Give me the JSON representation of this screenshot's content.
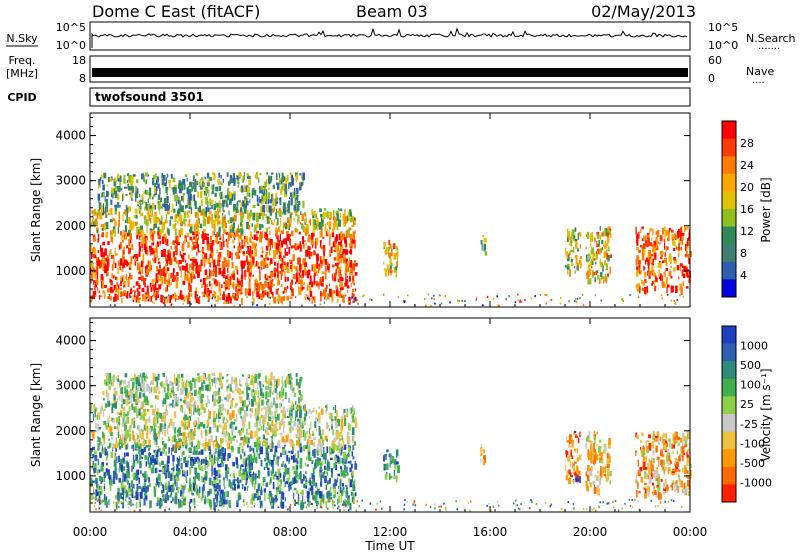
{
  "header": {
    "title": "Dome C East (fitACF)",
    "beam": "Beam 03",
    "date": "02/May/2013"
  },
  "nsky_panel": {
    "left_label": "N.Sky",
    "right_label": "N.Search",
    "right_dots": "·······",
    "left_ticks": [
      "10^5",
      "10^0"
    ],
    "right_ticks": [
      "10^5",
      "10^0"
    ]
  },
  "freq_panel": {
    "left_label_top": "Freq.",
    "left_label_bottom": "[MHz]",
    "left_ticks": [
      "18",
      "8"
    ],
    "right_label": "Nave",
    "right_dots": "····",
    "right_ticks": [
      "60",
      "0"
    ]
  },
  "cpid_panel": {
    "label": "CPID",
    "program": "twofsound 3501"
  },
  "x_axis": {
    "label": "Time UT",
    "ticks": [
      "00:00",
      "04:00",
      "08:00",
      "12:00",
      "16:00",
      "20:00",
      "00:00"
    ],
    "range_hours": [
      0,
      24
    ]
  },
  "chart_data": [
    {
      "type": "heatmap",
      "name": "power",
      "ylabel": "Slant Range [km]",
      "ylim": [
        200,
        4500
      ],
      "yticks": [
        1000,
        2000,
        3000,
        4000
      ],
      "colorbar": {
        "label": "Power [dB]",
        "ticks": [
          "28",
          "24",
          "20",
          "16",
          "12",
          "8",
          "4"
        ],
        "colors": [
          "#ff0000",
          "#ff3a00",
          "#ff7a00",
          "#ffa500",
          "#e0c200",
          "#90c020",
          "#2e8b57",
          "#3f7f6f",
          "#2e5fae",
          "#0000e0"
        ]
      },
      "regions": [
        {
          "x0": 0.0,
          "x1": 10.6,
          "y0": 400,
          "y1": 1900,
          "level": 0.85
        },
        {
          "x0": 0.0,
          "x1": 10.6,
          "y0": 1900,
          "y1": 2400,
          "level": 0.55
        },
        {
          "x0": 0.3,
          "x1": 8.5,
          "y0": 2400,
          "y1": 3200,
          "level": 0.35
        },
        {
          "x0": 11.7,
          "x1": 12.3,
          "y0": 1000,
          "y1": 1800,
          "level": 0.6
        },
        {
          "x0": 15.6,
          "x1": 15.8,
          "y0": 1400,
          "y1": 1800,
          "level": 0.4
        },
        {
          "x0": 19.0,
          "x1": 19.6,
          "y0": 1000,
          "y1": 2000,
          "level": 0.5
        },
        {
          "x0": 19.8,
          "x1": 20.8,
          "y0": 800,
          "y1": 2000,
          "level": 0.6
        },
        {
          "x0": 21.8,
          "x1": 24.0,
          "y0": 600,
          "y1": 2000,
          "level": 0.8
        }
      ]
    },
    {
      "type": "heatmap",
      "name": "velocity",
      "ylabel": "Slant Range [km]",
      "ylim": [
        200,
        4500
      ],
      "yticks": [
        1000,
        2000,
        3000,
        4000
      ],
      "colorbar": {
        "label": "Velocity [m s⁻¹]",
        "ticks": [
          "1000",
          "500",
          "100",
          "25",
          "-25",
          "-100",
          "-500",
          "-1000"
        ],
        "colors": [
          "#1e3fbf",
          "#2f5fae",
          "#2e8b7a",
          "#3faf50",
          "#8fd04a",
          "#c8c8c8",
          "#f0c040",
          "#ff9a00",
          "#ff6a00",
          "#ff2000"
        ]
      },
      "regions": [
        {
          "x0": 0.0,
          "x1": 10.6,
          "y0": 400,
          "y1": 1700,
          "level": 0.75
        },
        {
          "x0": 0.0,
          "x1": 10.6,
          "y0": 1700,
          "y1": 2600,
          "level": 0.5
        },
        {
          "x0": 0.5,
          "x1": 8.5,
          "y0": 2600,
          "y1": 3300,
          "level": 0.55
        },
        {
          "x0": 11.7,
          "x1": 12.3,
          "y0": 1000,
          "y1": 1600,
          "level": 0.75
        },
        {
          "x0": 15.6,
          "x1": 15.8,
          "y0": 1300,
          "y1": 1800,
          "level": 0.25
        },
        {
          "x0": 19.0,
          "x1": 19.6,
          "y0": 900,
          "y1": 2000,
          "level": 0.15
        },
        {
          "x0": 19.8,
          "x1": 20.8,
          "y0": 700,
          "y1": 2000,
          "level": 0.35
        },
        {
          "x0": 21.8,
          "x1": 24.0,
          "y0": 600,
          "y1": 2000,
          "level": 0.3
        }
      ]
    }
  ]
}
